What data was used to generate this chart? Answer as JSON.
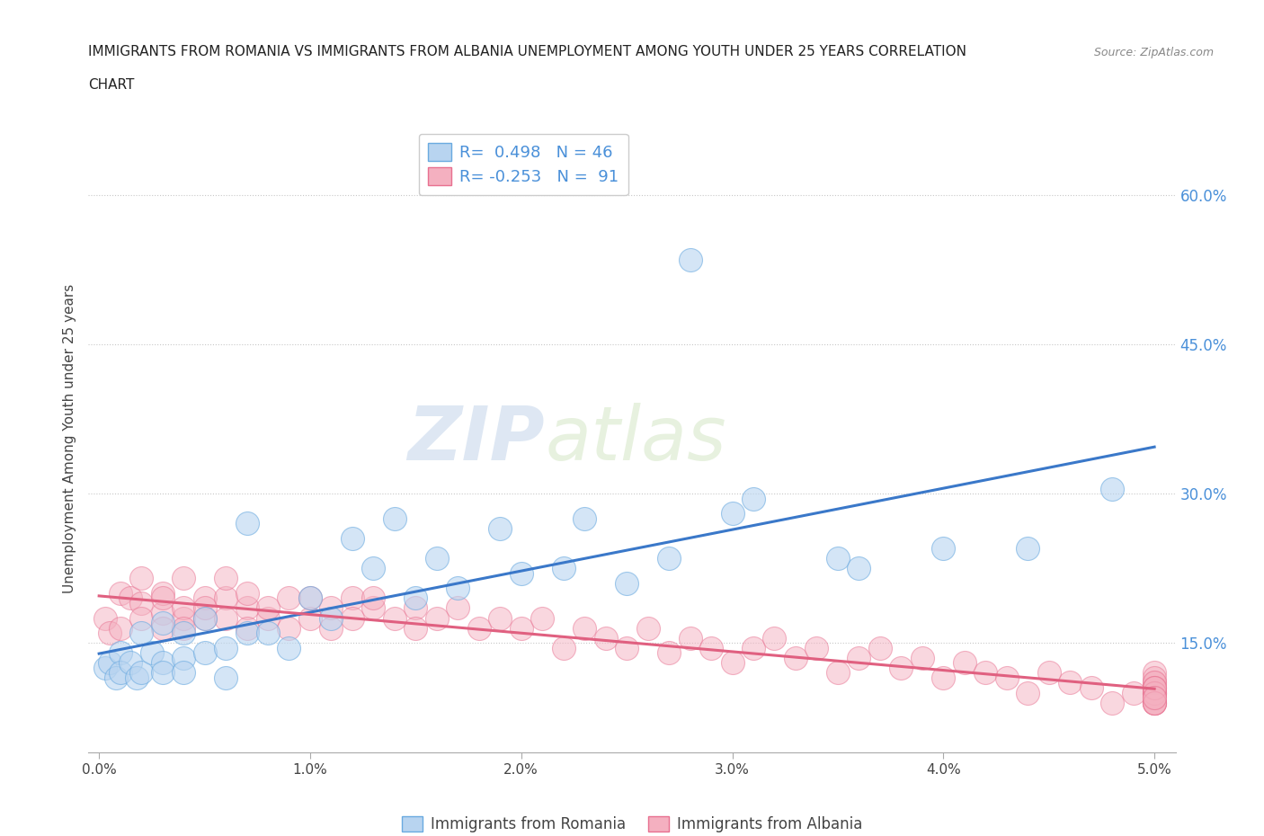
{
  "title_line1": "IMMIGRANTS FROM ROMANIA VS IMMIGRANTS FROM ALBANIA UNEMPLOYMENT AMONG YOUTH UNDER 25 YEARS CORRELATION",
  "title_line2": "CHART",
  "source": "Source: ZipAtlas.com",
  "ylabel": "Unemployment Among Youth under 25 years",
  "xlabel_romania": "Immigrants from Romania",
  "xlabel_albania": "Immigrants from Albania",
  "xlim": [
    -0.0005,
    0.051
  ],
  "ylim": [
    0.04,
    0.67
  ],
  "yticks": [
    0.15,
    0.3,
    0.45,
    0.6
  ],
  "ytick_labels": [
    "15.0%",
    "30.0%",
    "45.0%",
    "60.0%"
  ],
  "xticks": [
    0.0,
    0.01,
    0.02,
    0.03,
    0.04,
    0.05
  ],
  "xtick_labels": [
    "0.0%",
    "1.0%",
    "2.0%",
    "3.0%",
    "4.0%",
    "5.0%"
  ],
  "romania_fill_color": "#b8d4f0",
  "albania_fill_color": "#f4b0c0",
  "romania_edge_color": "#6aaae0",
  "albania_edge_color": "#e87090",
  "romania_line_color": "#3a78c9",
  "albania_line_color": "#e06080",
  "legend_text_color": "#4a90d9",
  "legend_box_color_ro": "#b8d4f0",
  "legend_box_color_al": "#f4b0c0",
  "watermark_zip": "ZIP",
  "watermark_atlas": "atlas",
  "background_color": "#ffffff",
  "grid_color": "#c8c8c8",
  "romania_scatter_x": [
    0.0003,
    0.0005,
    0.0008,
    0.001,
    0.001,
    0.0015,
    0.0018,
    0.002,
    0.002,
    0.0025,
    0.003,
    0.003,
    0.003,
    0.004,
    0.004,
    0.004,
    0.005,
    0.005,
    0.006,
    0.006,
    0.007,
    0.007,
    0.008,
    0.009,
    0.01,
    0.011,
    0.012,
    0.013,
    0.014,
    0.015,
    0.016,
    0.017,
    0.019,
    0.02,
    0.022,
    0.023,
    0.025,
    0.027,
    0.028,
    0.03,
    0.031,
    0.035,
    0.036,
    0.04,
    0.044,
    0.048
  ],
  "romania_scatter_y": [
    0.125,
    0.13,
    0.115,
    0.14,
    0.12,
    0.13,
    0.115,
    0.16,
    0.12,
    0.14,
    0.17,
    0.13,
    0.12,
    0.16,
    0.135,
    0.12,
    0.175,
    0.14,
    0.145,
    0.115,
    0.16,
    0.27,
    0.16,
    0.145,
    0.195,
    0.175,
    0.255,
    0.225,
    0.275,
    0.195,
    0.235,
    0.205,
    0.265,
    0.22,
    0.225,
    0.275,
    0.21,
    0.235,
    0.535,
    0.28,
    0.295,
    0.235,
    0.225,
    0.245,
    0.245,
    0.305
  ],
  "albania_scatter_x": [
    0.0003,
    0.0005,
    0.001,
    0.001,
    0.0015,
    0.002,
    0.002,
    0.002,
    0.003,
    0.003,
    0.003,
    0.003,
    0.004,
    0.004,
    0.004,
    0.004,
    0.005,
    0.005,
    0.005,
    0.006,
    0.006,
    0.006,
    0.007,
    0.007,
    0.007,
    0.008,
    0.008,
    0.009,
    0.009,
    0.01,
    0.01,
    0.011,
    0.011,
    0.012,
    0.012,
    0.013,
    0.013,
    0.014,
    0.015,
    0.015,
    0.016,
    0.017,
    0.018,
    0.019,
    0.02,
    0.021,
    0.022,
    0.023,
    0.024,
    0.025,
    0.026,
    0.027,
    0.028,
    0.029,
    0.03,
    0.031,
    0.032,
    0.033,
    0.034,
    0.035,
    0.036,
    0.037,
    0.038,
    0.039,
    0.04,
    0.041,
    0.042,
    0.043,
    0.044,
    0.045,
    0.046,
    0.047,
    0.048,
    0.049,
    0.05,
    0.05,
    0.05,
    0.05,
    0.05,
    0.05,
    0.05,
    0.05,
    0.05,
    0.05,
    0.05,
    0.05,
    0.05,
    0.05,
    0.05,
    0.05,
    0.05
  ],
  "albania_scatter_y": [
    0.175,
    0.16,
    0.2,
    0.165,
    0.195,
    0.19,
    0.175,
    0.215,
    0.18,
    0.2,
    0.165,
    0.195,
    0.175,
    0.215,
    0.185,
    0.165,
    0.195,
    0.175,
    0.185,
    0.195,
    0.175,
    0.215,
    0.185,
    0.165,
    0.2,
    0.175,
    0.185,
    0.195,
    0.165,
    0.175,
    0.195,
    0.185,
    0.165,
    0.195,
    0.175,
    0.185,
    0.195,
    0.175,
    0.185,
    0.165,
    0.175,
    0.185,
    0.165,
    0.175,
    0.165,
    0.175,
    0.145,
    0.165,
    0.155,
    0.145,
    0.165,
    0.14,
    0.155,
    0.145,
    0.13,
    0.145,
    0.155,
    0.135,
    0.145,
    0.12,
    0.135,
    0.145,
    0.125,
    0.135,
    0.115,
    0.13,
    0.12,
    0.115,
    0.1,
    0.12,
    0.11,
    0.105,
    0.09,
    0.1,
    0.11,
    0.12,
    0.1,
    0.105,
    0.115,
    0.09,
    0.1,
    0.11,
    0.09,
    0.1,
    0.105,
    0.09,
    0.1,
    0.095,
    0.105,
    0.09,
    0.095
  ]
}
